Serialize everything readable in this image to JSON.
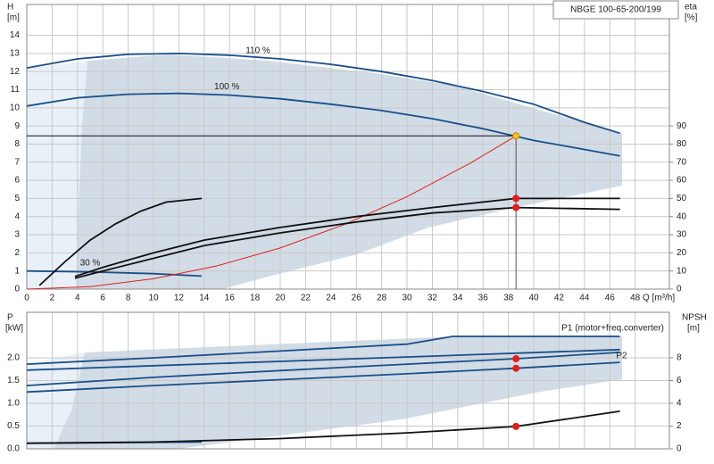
{
  "chart_data": [
    {
      "type": "line",
      "title": "NBGE 100-65-200/199",
      "y_label": "H",
      "y_unit": "[m]",
      "y2_label": "eta",
      "y2_unit": "[%]",
      "x_label": "Q [m³/h]",
      "xlim": [
        0,
        50.7
      ],
      "xticks": [
        0,
        2,
        4,
        6,
        8,
        10,
        12,
        14,
        16,
        18,
        20,
        22,
        24,
        26,
        28,
        30,
        32,
        34,
        36,
        38,
        40,
        42,
        44,
        46,
        48
      ],
      "ylim": [
        0,
        15.7
      ],
      "yticks": [
        0,
        1,
        2,
        3,
        4,
        5,
        6,
        7,
        8,
        9,
        10,
        11,
        12,
        13,
        14
      ],
      "y2lim": [
        0,
        157
      ],
      "y2ticks": [
        0,
        10,
        20,
        30,
        40,
        50,
        60,
        70,
        80,
        90
      ],
      "grid": true,
      "series": [
        {
          "name": "110 %",
          "color": "#1a4f8a",
          "x": [
            0,
            4,
            8,
            12,
            16,
            20,
            24,
            28,
            32,
            36,
            40,
            44,
            46.8
          ],
          "values": [
            12.2,
            12.7,
            12.95,
            13.0,
            12.9,
            12.7,
            12.4,
            12.0,
            11.5,
            10.9,
            10.2,
            9.2,
            8.6
          ]
        },
        {
          "name": "100 %",
          "color": "#1a4f8a",
          "x": [
            0,
            4,
            8,
            12,
            16,
            20,
            24,
            28,
            32,
            36,
            40,
            44,
            46.8
          ],
          "values": [
            10.1,
            10.55,
            10.75,
            10.8,
            10.7,
            10.5,
            10.2,
            9.85,
            9.4,
            8.85,
            8.2,
            7.7,
            7.35
          ]
        },
        {
          "name": "30 %",
          "color": "#1a4f8a",
          "x": [
            0,
            5,
            10,
            13.8
          ],
          "values": [
            1.0,
            0.95,
            0.85,
            0.72
          ]
        },
        {
          "color": "#e0201b",
          "x": [
            0,
            5,
            10,
            15,
            20,
            25,
            30,
            35,
            38.6
          ],
          "values": [
            0,
            0.14,
            0.57,
            1.28,
            2.27,
            3.55,
            5.1,
            6.95,
            8.45
          ]
        },
        {
          "color": "#111111",
          "axis": "y2",
          "x": [
            3.8,
            6,
            10,
            14,
            20,
            26,
            32,
            38.6,
            46.8
          ],
          "values": [
            7,
            12,
            20,
            27,
            34,
            40,
            45,
            50,
            50
          ]
        },
        {
          "color": "#111111",
          "axis": "y2",
          "x": [
            3.8,
            6,
            10,
            14,
            20,
            26,
            32,
            38.6,
            46.8
          ],
          "values": [
            6,
            10,
            17,
            24,
            31,
            37,
            42,
            45,
            44
          ]
        },
        {
          "color": "#111111",
          "axis": "y2",
          "x": [
            1,
            3,
            5,
            7,
            9,
            11,
            13.8
          ],
          "values": [
            2,
            15,
            27,
            36,
            43,
            48,
            50
          ]
        },
        {
          "color": "#f5c518",
          "marker": "circle",
          "guides": true,
          "x": [
            38.6
          ],
          "values": [
            8.45
          ]
        },
        {
          "color": "#e0201b",
          "marker": "circle",
          "axis": "y2",
          "x": [
            38.6
          ],
          "values": [
            50
          ]
        },
        {
          "color": "#e0201b",
          "marker": "circle",
          "axis": "y2",
          "x": [
            38.6
          ],
          "values": [
            45
          ]
        }
      ]
    },
    {
      "type": "line",
      "y_label": "P",
      "y_unit": "[kW]",
      "y2_label": "NPSH",
      "y2_unit": "[m]",
      "xlim": [
        0,
        50.7
      ],
      "ylim": [
        0,
        3.0
      ],
      "yticks": [
        {
          "value": 0,
          "label": "0.0"
        },
        {
          "value": 0.5,
          "label": "0.5"
        },
        {
          "value": 1,
          "label": "1.0"
        },
        {
          "value": 1.5,
          "label": "1.5"
        },
        {
          "value": 2,
          "label": "2.0"
        }
      ],
      "y2lim": [
        0,
        12
      ],
      "y2ticks": [
        0,
        2,
        4,
        6,
        8
      ],
      "grid": true,
      "series": [
        {
          "name": "P1 (motor+freq.converter)",
          "color": "#1a4f8a",
          "x": [
            0,
            10,
            20,
            30,
            38.6,
            46.8
          ],
          "values": [
            1.39,
            1.57,
            1.72,
            1.86,
            1.98,
            2.12
          ]
        },
        {
          "name": "P2",
          "color": "#1a4f8a",
          "x": [
            0,
            10,
            20,
            30,
            38.6,
            46.8
          ],
          "values": [
            1.25,
            1.39,
            1.52,
            1.65,
            1.77,
            1.9
          ]
        },
        {
          "color": "#1a4f8a",
          "x": [
            0,
            10,
            20,
            30,
            33.6,
            46.8
          ],
          "values": [
            1.86,
            2.0,
            2.15,
            2.3,
            2.47,
            2.47
          ]
        },
        {
          "color": "#1a4f8a",
          "x": [
            0,
            46.8
          ],
          "values": [
            1.73,
            2.18
          ]
        },
        {
          "color": "#1a4f8a",
          "x": [
            0,
            13.8
          ],
          "values": [
            0.12,
            0.15
          ]
        },
        {
          "color": "#111111",
          "axis": "y2",
          "x": [
            0,
            10,
            20,
            30,
            38.6,
            46.8
          ],
          "values": [
            0.5,
            0.6,
            0.9,
            1.4,
            1.97,
            3.3
          ]
        },
        {
          "color": "#e0201b",
          "marker": "circle",
          "x": [
            38.6
          ],
          "values": [
            1.98
          ]
        },
        {
          "color": "#e0201b",
          "marker": "circle",
          "x": [
            38.6
          ],
          "values": [
            1.77
          ]
        },
        {
          "color": "#e0201b",
          "marker": "circle",
          "axis": "y2",
          "x": [
            38.6
          ],
          "values": [
            1.97
          ]
        }
      ]
    }
  ]
}
